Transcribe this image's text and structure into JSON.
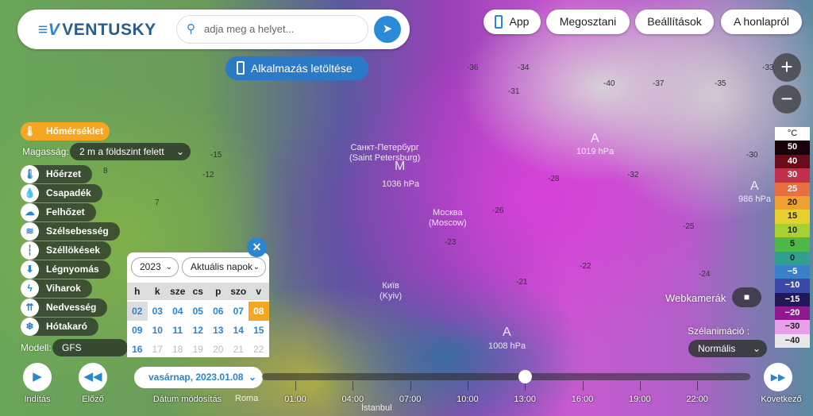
{
  "brand": "VENTUSKY",
  "search": {
    "placeholder": "adja meg a helyet..."
  },
  "download_label": "Alkalmazás letöltése",
  "top_nav": [
    "App",
    "Megosztani",
    "Beállítások",
    "A honlapról"
  ],
  "zoom": {
    "in": "+",
    "out": "−"
  },
  "legend": {
    "unit": "°C",
    "items": [
      {
        "v": "50",
        "c": "#1a0008",
        "t": "#fff"
      },
      {
        "v": "40",
        "c": "#6a0a1a",
        "t": "#fff"
      },
      {
        "v": "30",
        "c": "#c0304a",
        "t": "#fff"
      },
      {
        "v": "25",
        "c": "#e87040",
        "t": "#fff"
      },
      {
        "v": "20",
        "c": "#f0a030",
        "t": "#222"
      },
      {
        "v": "15",
        "c": "#e8d030",
        "t": "#222"
      },
      {
        "v": "10",
        "c": "#a8d030",
        "t": "#222"
      },
      {
        "v": "5",
        "c": "#50b848",
        "t": "#222"
      },
      {
        "v": "0",
        "c": "#30a090",
        "t": "#222"
      },
      {
        "v": "−5",
        "c": "#3a80c8",
        "t": "#fff"
      },
      {
        "v": "−10",
        "c": "#3a48a8",
        "t": "#fff"
      },
      {
        "v": "−15",
        "c": "#201858",
        "t": "#fff"
      },
      {
        "v": "−20",
        "c": "#901890",
        "t": "#fff"
      },
      {
        "v": "−30",
        "c": "#e8a0e8",
        "t": "#222"
      },
      {
        "v": "−40",
        "c": "#e8e8e8",
        "t": "#222"
      }
    ]
  },
  "active_layer": "Hőmérséklet",
  "altitude": {
    "label": "Magasság:",
    "value": "2 m a földszint felett"
  },
  "layers": [
    "Hőérzet",
    "Csapadék",
    "Felhőzet",
    "Szélsebesség",
    "Széllökések",
    "Légnyomás",
    "Viharok",
    "Nedvesség",
    "Hótakaró"
  ],
  "layer_icons": [
    "thermometer-wind-icon",
    "droplet-icon",
    "cloud-icon",
    "wind-icon",
    "gust-icon",
    "pressure-icon",
    "lightning-icon",
    "humidity-icon",
    "snowflake-icon"
  ],
  "model": {
    "label": "Modell:",
    "value": "GFS"
  },
  "calendar": {
    "year": "2023",
    "range": "Aktuális napok",
    "weekdays": [
      "h",
      "k",
      "sze",
      "cs",
      "p",
      "szo",
      "v"
    ],
    "rows": [
      [
        "02",
        "03",
        "04",
        "05",
        "06",
        "07",
        "08"
      ],
      [
        "09",
        "10",
        "11",
        "12",
        "13",
        "14",
        "15"
      ],
      [
        "16",
        "17",
        "18",
        "19",
        "20",
        "21",
        "22"
      ]
    ],
    "selected": "08",
    "today": "02"
  },
  "map_labels": {
    "spb": "Санкт-Петербург\n(Saint Petersburg)",
    "moscow": "Москва\n(Moscow)",
    "kyiv": "Київ\n(Kyiv)",
    "roma": "Roma",
    "istanbul": "İstanbul",
    "m1": "M",
    "p1": "1036 hPa",
    "a1": "A",
    "p2": "1019 hPa",
    "a2": "A",
    "p3": "986 hPa",
    "a3": "A",
    "p4": "1008 hPa"
  },
  "map_temps": [
    "-34",
    "-36",
    "-40",
    "-37",
    "-35",
    "-33",
    "-31",
    "-32",
    "-28",
    "-26",
    "-23",
    "-21",
    "-24",
    "-22",
    "-25",
    "-30",
    "8",
    "7",
    "1",
    "-12",
    "-15"
  ],
  "webcams": "Webkamerák",
  "wind_anim": {
    "label": "Szélanimáció :",
    "value": "Normális"
  },
  "controls": {
    "play": "Indítás",
    "prev": "Előző",
    "date_change": "Dátum módosítás",
    "next": "Következő"
  },
  "date": "vasárnap, 2023.01.08",
  "timeline": {
    "times": [
      "01:00",
      "04:00",
      "07:00",
      "10:00",
      "13:00",
      "16:00",
      "19:00",
      "22:00"
    ],
    "current": "13:00"
  }
}
